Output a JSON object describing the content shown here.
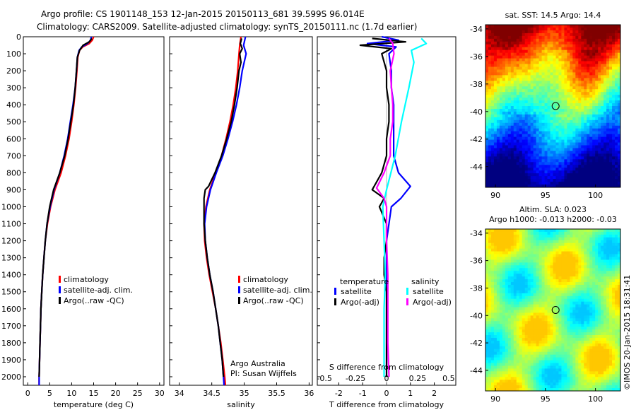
{
  "header": {
    "line1": "Argo profile: CS 1901148_153 12-Jan-2015 20150113_681 39.599S 96.014E",
    "line2": "Climatology: CARS2009. Satellite-adjusted climatology: synTS_20150111.nc (1.7d earlier)"
  },
  "footer": {
    "argo_australia": "Argo Australia",
    "pi": "PI: Susan Wijffels",
    "imos_stamp": "©IMOS 20-Jan-2015 18:31:41"
  },
  "colors": {
    "climatology": "#ff0000",
    "satellite": "#0000ff",
    "argo": "#000000",
    "sal_satellite": "#00ffff",
    "sal_argo": "#ff00ff"
  },
  "chart_data": [
    {
      "id": "temperature",
      "type": "line",
      "xlabel": "temperature (deg C)",
      "ylabel": "",
      "xlim": [
        -1,
        31
      ],
      "ylim": [
        2050,
        0
      ],
      "xticks": [
        0,
        5,
        10,
        15,
        20,
        25,
        30
      ],
      "yticks": [
        0,
        100,
        200,
        300,
        400,
        500,
        600,
        700,
        800,
        900,
        1000,
        1100,
        1200,
        1300,
        1400,
        1500,
        1600,
        1700,
        1800,
        1900,
        2000
      ],
      "legend": [
        "climatology",
        "satellite-adj. clim.",
        "Argo(..raw -QC)"
      ],
      "series": [
        {
          "name": "climatology",
          "color": "#ff0000",
          "points": [
            [
              15.0,
              0
            ],
            [
              14.7,
              20
            ],
            [
              14.0,
              40
            ],
            [
              12.5,
              60
            ],
            [
              11.8,
              80
            ],
            [
              11.4,
              120
            ],
            [
              11.2,
              200
            ],
            [
              10.9,
              300
            ],
            [
              10.5,
              400
            ],
            [
              10.0,
              500
            ],
            [
              9.4,
              600
            ],
            [
              8.6,
              700
            ],
            [
              7.6,
              800
            ],
            [
              6.2,
              900
            ],
            [
              5.2,
              1000
            ],
            [
              4.5,
              1100
            ],
            [
              4.0,
              1200
            ],
            [
              3.7,
              1300
            ],
            [
              3.4,
              1400
            ],
            [
              3.2,
              1500
            ],
            [
              3.0,
              1600
            ],
            [
              2.9,
              1700
            ],
            [
              2.8,
              1800
            ],
            [
              2.7,
              1900
            ],
            [
              2.6,
              2000
            ],
            [
              2.6,
              2050
            ]
          ]
        },
        {
          "name": "satellite-adj. clim.",
          "color": "#0000ff",
          "points": [
            [
              14.5,
              0
            ],
            [
              14.3,
              20
            ],
            [
              13.6,
              40
            ],
            [
              12.3,
              60
            ],
            [
              11.7,
              80
            ],
            [
              11.3,
              120
            ],
            [
              11.1,
              200
            ],
            [
              10.8,
              300
            ],
            [
              10.3,
              400
            ],
            [
              9.7,
              500
            ],
            [
              9.1,
              600
            ],
            [
              8.3,
              700
            ],
            [
              7.3,
              800
            ],
            [
              6.0,
              900
            ],
            [
              5.1,
              1000
            ],
            [
              4.4,
              1100
            ],
            [
              4.0,
              1200
            ],
            [
              3.7,
              1300
            ],
            [
              3.4,
              1400
            ],
            [
              3.2,
              1500
            ],
            [
              3.0,
              1600
            ],
            [
              2.9,
              1700
            ],
            [
              2.8,
              1800
            ],
            [
              2.7,
              1900
            ],
            [
              2.6,
              2000
            ],
            [
              2.6,
              2050
            ]
          ]
        },
        {
          "name": "Argo(..raw -QC)",
          "color": "#000000",
          "points": [
            [
              14.6,
              10
            ],
            [
              14.0,
              30
            ],
            [
              12.6,
              50
            ],
            [
              11.8,
              80
            ],
            [
              11.3,
              120
            ],
            [
              11.1,
              200
            ],
            [
              10.8,
              300
            ],
            [
              10.4,
              400
            ],
            [
              9.8,
              500
            ],
            [
              9.2,
              600
            ],
            [
              8.4,
              700
            ],
            [
              7.3,
              800
            ],
            [
              5.9,
              900
            ],
            [
              5.0,
              1000
            ],
            [
              4.4,
              1100
            ],
            [
              4.0,
              1200
            ],
            [
              3.7,
              1300
            ],
            [
              3.4,
              1400
            ],
            [
              3.2,
              1500
            ],
            [
              3.0,
              1600
            ],
            [
              2.9,
              1700
            ],
            [
              2.8,
              1800
            ],
            [
              2.7,
              1900
            ],
            [
              2.6,
              2000
            ]
          ]
        }
      ]
    },
    {
      "id": "salinity",
      "type": "line",
      "xlabel": "salinity",
      "xlim": [
        33.85,
        36.05
      ],
      "ylim": [
        2050,
        0
      ],
      "xticks": [
        34,
        34.5,
        35,
        35.5,
        36
      ],
      "legend": [
        "climatology",
        "satellite-adj. clim.",
        "Argo(..raw -QC)"
      ],
      "series": [
        {
          "name": "climatology",
          "color": "#ff0000",
          "points": [
            [
              34.95,
              0
            ],
            [
              34.93,
              50
            ],
            [
              34.92,
              100
            ],
            [
              34.9,
              200
            ],
            [
              34.87,
              300
            ],
            [
              34.83,
              400
            ],
            [
              34.78,
              500
            ],
            [
              34.72,
              600
            ],
            [
              34.65,
              700
            ],
            [
              34.56,
              800
            ],
            [
              34.47,
              900
            ],
            [
              34.41,
              1000
            ],
            [
              34.38,
              1100
            ],
            [
              34.39,
              1200
            ],
            [
              34.42,
              1300
            ],
            [
              34.46,
              1400
            ],
            [
              34.51,
              1500
            ],
            [
              34.56,
              1600
            ],
            [
              34.6,
              1700
            ],
            [
              34.64,
              1800
            ],
            [
              34.67,
              1900
            ],
            [
              34.7,
              2000
            ],
            [
              34.71,
              2050
            ]
          ]
        },
        {
          "name": "satellite-adj. clim.",
          "color": "#0000ff",
          "points": [
            [
              35.02,
              0
            ],
            [
              34.99,
              50
            ],
            [
              35.03,
              100
            ],
            [
              34.97,
              200
            ],
            [
              34.93,
              300
            ],
            [
              34.88,
              400
            ],
            [
              34.82,
              500
            ],
            [
              34.75,
              600
            ],
            [
              34.67,
              700
            ],
            [
              34.57,
              800
            ],
            [
              34.48,
              900
            ],
            [
              34.42,
              1000
            ],
            [
              34.39,
              1100
            ],
            [
              34.4,
              1200
            ],
            [
              34.43,
              1300
            ],
            [
              34.47,
              1400
            ],
            [
              34.52,
              1500
            ],
            [
              34.56,
              1600
            ],
            [
              34.6,
              1700
            ],
            [
              34.63,
              1800
            ],
            [
              34.66,
              1900
            ],
            [
              34.68,
              2000
            ],
            [
              34.69,
              2050
            ]
          ]
        },
        {
          "name": "Argo(..raw -QC)",
          "color": "#000000",
          "points": [
            [
              34.96,
              10
            ],
            [
              34.94,
              40
            ],
            [
              34.97,
              70
            ],
            [
              34.93,
              100
            ],
            [
              34.95,
              150
            ],
            [
              34.92,
              200
            ],
            [
              34.89,
              300
            ],
            [
              34.85,
              400
            ],
            [
              34.8,
              500
            ],
            [
              34.73,
              600
            ],
            [
              34.65,
              700
            ],
            [
              34.55,
              800
            ],
            [
              34.45,
              880
            ],
            [
              34.4,
              900
            ],
            [
              34.38,
              950
            ],
            [
              34.38,
              1000
            ],
            [
              34.38,
              1100
            ],
            [
              34.4,
              1200
            ],
            [
              34.43,
              1300
            ],
            [
              34.47,
              1400
            ],
            [
              34.52,
              1500
            ],
            [
              34.56,
              1600
            ],
            [
              34.6,
              1700
            ],
            [
              34.63,
              1800
            ],
            [
              34.66,
              1900
            ],
            [
              34.68,
              2000
            ]
          ]
        }
      ]
    },
    {
      "id": "difference",
      "type": "line",
      "xlabel": "T difference from climatology",
      "top_xlabel": "S difference from climatology",
      "xlim": [
        -2.9,
        2.9
      ],
      "ylim": [
        2050,
        0
      ],
      "xticks": [
        -2,
        -1,
        0,
        1,
        2
      ],
      "top_xticks": [
        "-0.5",
        "-0.25",
        "0",
        "0.25",
        "0.5"
      ],
      "legend_temperature_title": "temperature",
      "legend_salinity_title": "salinity",
      "legend": [
        "satellite",
        "Argo(-adj)",
        "satellite",
        "Argo(-adj)"
      ],
      "series": [
        {
          "name": "satellite",
          "group": "temperature",
          "color": "#0000ff",
          "points": [
            [
              -0.2,
              0
            ],
            [
              0.5,
              20
            ],
            [
              -0.8,
              40
            ],
            [
              0.4,
              60
            ],
            [
              0.1,
              100
            ],
            [
              0.2,
              200
            ],
            [
              0.2,
              300
            ],
            [
              0.3,
              400
            ],
            [
              0.3,
              500
            ],
            [
              0.3,
              600
            ],
            [
              0.3,
              700
            ],
            [
              0.5,
              800
            ],
            [
              1.0,
              880
            ],
            [
              0.6,
              950
            ],
            [
              0.2,
              1000
            ],
            [
              0.1,
              1100
            ],
            [
              0.0,
              1200
            ],
            [
              0.0,
              1400
            ],
            [
              0.0,
              1600
            ],
            [
              0.0,
              1800
            ],
            [
              0.0,
              2000
            ]
          ]
        },
        {
          "name": "Argo(-adj)",
          "group": "temperature",
          "color": "#000000",
          "points": [
            [
              -0.6,
              10
            ],
            [
              0.8,
              30
            ],
            [
              -1.1,
              50
            ],
            [
              0.2,
              70
            ],
            [
              -0.2,
              100
            ],
            [
              0.0,
              200
            ],
            [
              0.0,
              300
            ],
            [
              0.1,
              400
            ],
            [
              0.1,
              500
            ],
            [
              0.0,
              600
            ],
            [
              0.0,
              700
            ],
            [
              -0.2,
              800
            ],
            [
              -0.4,
              850
            ],
            [
              -0.6,
              900
            ],
            [
              -0.1,
              950
            ],
            [
              -0.3,
              1000
            ],
            [
              0.0,
              1100
            ],
            [
              0.0,
              1200
            ],
            [
              -0.1,
              1300
            ],
            [
              -0.1,
              1400
            ],
            [
              0.0,
              1500
            ],
            [
              0.0,
              1600
            ],
            [
              0.0,
              1700
            ],
            [
              0.0,
              1800
            ],
            [
              0.0,
              1900
            ],
            [
              0.0,
              2000
            ]
          ]
        },
        {
          "name": "satellite",
          "group": "salinity",
          "color": "#00ffff",
          "points": [
            [
              0.28,
              10
            ],
            [
              0.32,
              40
            ],
            [
              0.2,
              80
            ],
            [
              0.22,
              150
            ],
            [
              0.18,
              300
            ],
            [
              0.12,
              500
            ],
            [
              0.07,
              700
            ],
            [
              0.0,
              900
            ],
            [
              -0.03,
              1000
            ],
            [
              -0.02,
              1200
            ],
            [
              -0.01,
              1400
            ],
            [
              -0.02,
              1600
            ],
            [
              -0.02,
              1800
            ],
            [
              -0.02,
              2000
            ]
          ]
        },
        {
          "name": "Argo(-adj)",
          "group": "salinity",
          "color": "#ff00ff",
          "points": [
            [
              0.02,
              10
            ],
            [
              0.05,
              40
            ],
            [
              0.06,
              100
            ],
            [
              0.03,
              200
            ],
            [
              0.04,
              300
            ],
            [
              0.05,
              400
            ],
            [
              0.05,
              500
            ],
            [
              0.03,
              600
            ],
            [
              0.03,
              700
            ],
            [
              -0.02,
              800
            ],
            [
              -0.08,
              890
            ],
            [
              -0.02,
              950
            ],
            [
              0.0,
              1000
            ],
            [
              0.0,
              1200
            ],
            [
              0.01,
              1400
            ],
            [
              0.01,
              1600
            ],
            [
              0.01,
              1800
            ],
            [
              0.02,
              2000
            ]
          ]
        }
      ]
    },
    {
      "id": "sst_map",
      "type": "heatmap",
      "title": "sat. SST: 14.5  Argo: 14.4",
      "xlim": [
        89,
        102.5
      ],
      "ylim": [
        -45.5,
        -33.7
      ],
      "xticks": [
        90,
        95,
        100
      ],
      "yticks": [
        -34,
        -36,
        -38,
        -40,
        -42,
        -44
      ],
      "marker": {
        "lon": 96.014,
        "lat": -39.599
      }
    },
    {
      "id": "sla_map",
      "type": "heatmap",
      "title_line1": "Altim. SLA: 0.023",
      "title_line2": "Argo h1000: -0.013 h2000: -0.03",
      "xlim": [
        89,
        102.5
      ],
      "ylim": [
        -45.5,
        -33.7
      ],
      "xticks": [
        90,
        95,
        100
      ],
      "yticks": [
        -34,
        -36,
        -38,
        -40,
        -42,
        -44
      ],
      "marker": {
        "lon": 96.014,
        "lat": -39.599
      }
    }
  ]
}
